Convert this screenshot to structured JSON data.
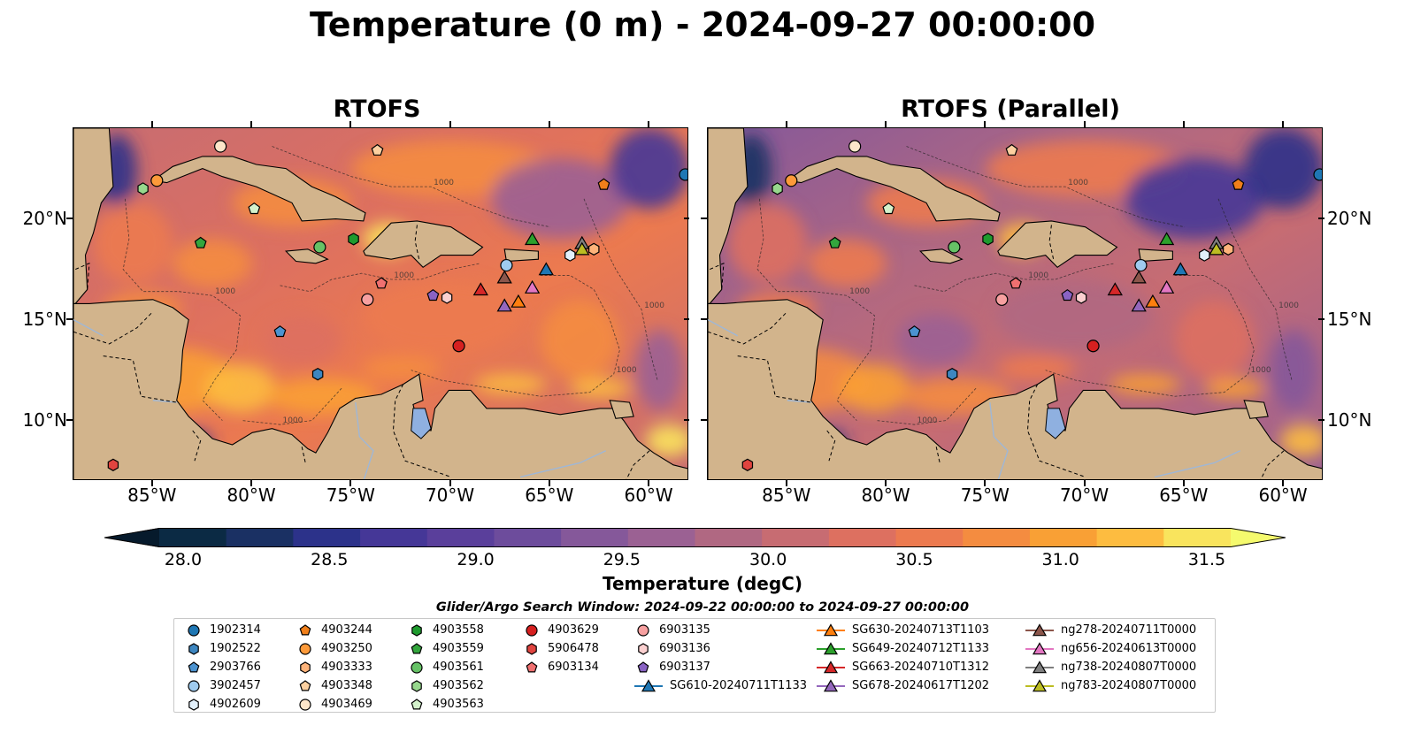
{
  "title": "Temperature (0 m) - 2024-09-27 00:00:00",
  "panels": [
    {
      "title": "RTOFS"
    },
    {
      "title": "RTOFS (Parallel)"
    }
  ],
  "map": {
    "lon_range": [
      -89.0,
      -58.0
    ],
    "lat_range": [
      7.0,
      24.5
    ],
    "lon_ticks": [
      "85°W",
      "80°W",
      "75°W",
      "70°W",
      "65°W",
      "60°W"
    ],
    "lon_tick_values": [
      -85,
      -80,
      -75,
      -70,
      -65,
      -60
    ],
    "lat_ticks": [
      "20°N",
      "15°N",
      "10°N"
    ],
    "lat_tick_values": [
      20,
      15,
      10
    ],
    "land_color": "#d2b48c",
    "lake_color": "#8fb0e0",
    "contour_label": "1000"
  },
  "colorbar": {
    "label": "Temperature (degC)",
    "tick_labels": [
      "28.0",
      "28.5",
      "29.0",
      "29.5",
      "30.0",
      "30.5",
      "31.0",
      "31.5"
    ],
    "tick_values": [
      28.0,
      28.5,
      29.0,
      29.5,
      30.0,
      30.5,
      31.0,
      31.5
    ],
    "colors": [
      "#0b2a44",
      "#1a3063",
      "#2c328a",
      "#453797",
      "#5a3f9b",
      "#6d4c9c",
      "#85589a",
      "#9b6193",
      "#b06882",
      "#c76c72",
      "#dd7060",
      "#ec7a4f",
      "#f48c40",
      "#f9a035",
      "#fdbc40",
      "#f9e45d"
    ],
    "under_color": "#061a2c",
    "over_color": "#f5fa6e"
  },
  "legend": {
    "title": "Glider/Argo Search Window: 2024-09-22 00:00:00 to 2024-09-27 00:00:00",
    "items": [
      {
        "label": "1902314",
        "marker": "circle",
        "color": "#1f77b4"
      },
      {
        "label": "1902522",
        "marker": "hexagon",
        "color": "#3d86c0"
      },
      {
        "label": "2903766",
        "marker": "pentagon",
        "color": "#4c93d0"
      },
      {
        "label": "3902457",
        "marker": "circle",
        "color": "#9fcbef"
      },
      {
        "label": "4902609",
        "marker": "hexagon",
        "color": "#e2f0fb"
      },
      {
        "label": "4903244",
        "marker": "pentagon",
        "color": "#f07f1a"
      },
      {
        "label": "4903250",
        "marker": "circle",
        "color": "#fd9a3a"
      },
      {
        "label": "4903333",
        "marker": "hexagon",
        "color": "#fdb37a"
      },
      {
        "label": "4903348",
        "marker": "pentagon",
        "color": "#fdd0a0"
      },
      {
        "label": "4903469",
        "marker": "circle",
        "color": "#fde6ca"
      },
      {
        "label": "4903558",
        "marker": "hexagon",
        "color": "#1e9b2e"
      },
      {
        "label": "4903559",
        "marker": "pentagon",
        "color": "#33a63d"
      },
      {
        "label": "4903561",
        "marker": "circle",
        "color": "#66c266"
      },
      {
        "label": "4903562",
        "marker": "hexagon",
        "color": "#97d88d"
      },
      {
        "label": "4903563",
        "marker": "pentagon",
        "color": "#d4f2cc"
      },
      {
        "label": "4903629",
        "marker": "circle",
        "color": "#d62020"
      },
      {
        "label": "5906478",
        "marker": "hexagon",
        "color": "#e0443f"
      },
      {
        "label": "6903134",
        "marker": "pentagon",
        "color": "#f07070"
      },
      {
        "label": "6903135",
        "marker": "circle",
        "color": "#f7a0a0"
      },
      {
        "label": "6903136",
        "marker": "hexagon",
        "color": "#fbd0d0"
      },
      {
        "label": "6903137",
        "marker": "pentagon",
        "color": "#8a63c4"
      },
      {
        "label": "SG610-20240711T1133",
        "marker": "triangle",
        "color": "#1f77b4"
      },
      {
        "label": "SG630-20240713T1103",
        "marker": "triangle",
        "color": "#ff7f0e"
      },
      {
        "label": "SG649-20240712T1133",
        "marker": "triangle",
        "color": "#2ca02c"
      },
      {
        "label": "SG663-20240710T1312",
        "marker": "triangle",
        "color": "#d62728"
      },
      {
        "label": "SG678-20240617T1202",
        "marker": "triangle",
        "color": "#9467bd"
      },
      {
        "label": "ng278-20240711T0000",
        "marker": "triangle",
        "color": "#8c564b"
      },
      {
        "label": "ng656-20240613T0000",
        "marker": "triangle",
        "color": "#e377c2"
      },
      {
        "label": "ng738-20240807T0000",
        "marker": "triangle",
        "color": "#7f7f7f"
      },
      {
        "label": "ng783-20240807T0000",
        "marker": "triangle",
        "color": "#bcbd22"
      }
    ]
  },
  "chart_data": {
    "type": "map",
    "title": "Temperature (0 m) - 2024-09-27 00:00:00",
    "variable": "Temperature",
    "units": "degC",
    "value_range": [
      28.0,
      31.5
    ],
    "panels": [
      "RTOFS",
      "RTOFS (Parallel)"
    ],
    "stations": [
      {
        "id": "1902314",
        "lon": -58.2,
        "lat": 22.2
      },
      {
        "id": "1902522",
        "lon": -76.7,
        "lat": 12.3
      },
      {
        "id": "2903766",
        "lon": -78.6,
        "lat": 14.4
      },
      {
        "id": "3902457",
        "lon": -67.2,
        "lat": 17.7
      },
      {
        "id": "4902609",
        "lon": -64.0,
        "lat": 18.2
      },
      {
        "id": "4903244",
        "lon": -62.3,
        "lat": 21.7
      },
      {
        "id": "4903250",
        "lon": -84.8,
        "lat": 21.9
      },
      {
        "id": "4903333",
        "lon": -62.8,
        "lat": 18.5
      },
      {
        "id": "4903348",
        "lon": -73.7,
        "lat": 23.4
      },
      {
        "id": "4903469",
        "lon": -81.6,
        "lat": 23.6
      },
      {
        "id": "4903558",
        "lon": -74.9,
        "lat": 19.0
      },
      {
        "id": "4903559",
        "lon": -82.6,
        "lat": 18.8
      },
      {
        "id": "4903561",
        "lon": -76.6,
        "lat": 18.6
      },
      {
        "id": "4903562",
        "lon": -85.5,
        "lat": 21.5
      },
      {
        "id": "4903563",
        "lon": -79.9,
        "lat": 20.5
      },
      {
        "id": "4903629",
        "lon": -69.6,
        "lat": 13.7
      },
      {
        "id": "5906478",
        "lon": -87.0,
        "lat": 7.8
      },
      {
        "id": "6903134",
        "lon": -73.5,
        "lat": 16.8
      },
      {
        "id": "6903135",
        "lon": -74.2,
        "lat": 16.0
      },
      {
        "id": "6903136",
        "lon": -70.2,
        "lat": 16.1
      },
      {
        "id": "6903137",
        "lon": -70.9,
        "lat": 16.2
      },
      {
        "id": "SG610-20240711T1133",
        "lon": -65.2,
        "lat": 17.5
      },
      {
        "id": "SG630-20240713T1103",
        "lon": -66.6,
        "lat": 15.9
      },
      {
        "id": "SG649-20240712T1133",
        "lon": -65.9,
        "lat": 19.0
      },
      {
        "id": "SG663-20240710T1312",
        "lon": -68.5,
        "lat": 16.5
      },
      {
        "id": "SG678-20240617T1202",
        "lon": -67.3,
        "lat": 15.7
      },
      {
        "id": "ng278-20240711T0000",
        "lon": -67.3,
        "lat": 17.1
      },
      {
        "id": "ng656-20240613T0000",
        "lon": -65.9,
        "lat": 16.6
      },
      {
        "id": "ng738-20240807T0000",
        "lon": -63.4,
        "lat": 18.8
      },
      {
        "id": "ng783-20240807T0000",
        "lon": -63.4,
        "lat": 18.5
      }
    ]
  }
}
